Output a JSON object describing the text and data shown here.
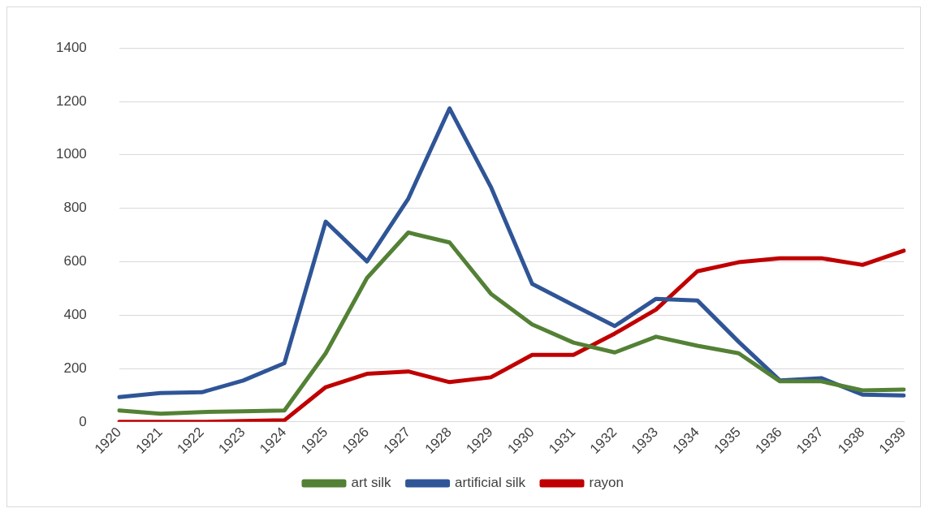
{
  "chart_data": {
    "type": "line",
    "categories": [
      "1920",
      "1921",
      "1922",
      "1923",
      "1924",
      "1925",
      "1926",
      "1927",
      "1928",
      "1929",
      "1930",
      "1931",
      "1932",
      "1933",
      "1934",
      "1935",
      "1936",
      "1937",
      "1938",
      "1939"
    ],
    "series": [
      {
        "name": "art silk",
        "color": "#538135",
        "values": [
          43,
          31,
          37,
          40,
          43,
          257,
          539,
          709,
          672,
          480,
          365,
          297,
          260,
          319,
          285,
          257,
          152,
          152,
          118,
          121
        ]
      },
      {
        "name": "artificial silk",
        "color": "#2f5597",
        "values": [
          93,
          108,
          111,
          155,
          220,
          750,
          601,
          836,
          1174,
          880,
          517,
          437,
          359,
          461,
          455,
          300,
          155,
          164,
          102,
          99
        ]
      },
      {
        "name": "rayon",
        "color": "#c00000",
        "values": [
          0,
          0,
          0,
          3,
          6,
          130,
          180,
          189,
          149,
          167,
          251,
          251,
          331,
          421,
          564,
          598,
          613,
          613,
          588,
          641
        ]
      }
    ],
    "ylim": [
      0,
      1400
    ],
    "yticks": [
      0,
      200,
      400,
      600,
      800,
      1000,
      1200,
      1400
    ],
    "grid": "y",
    "legend": "bottom",
    "marker": "none",
    "line_style": "solid"
  }
}
